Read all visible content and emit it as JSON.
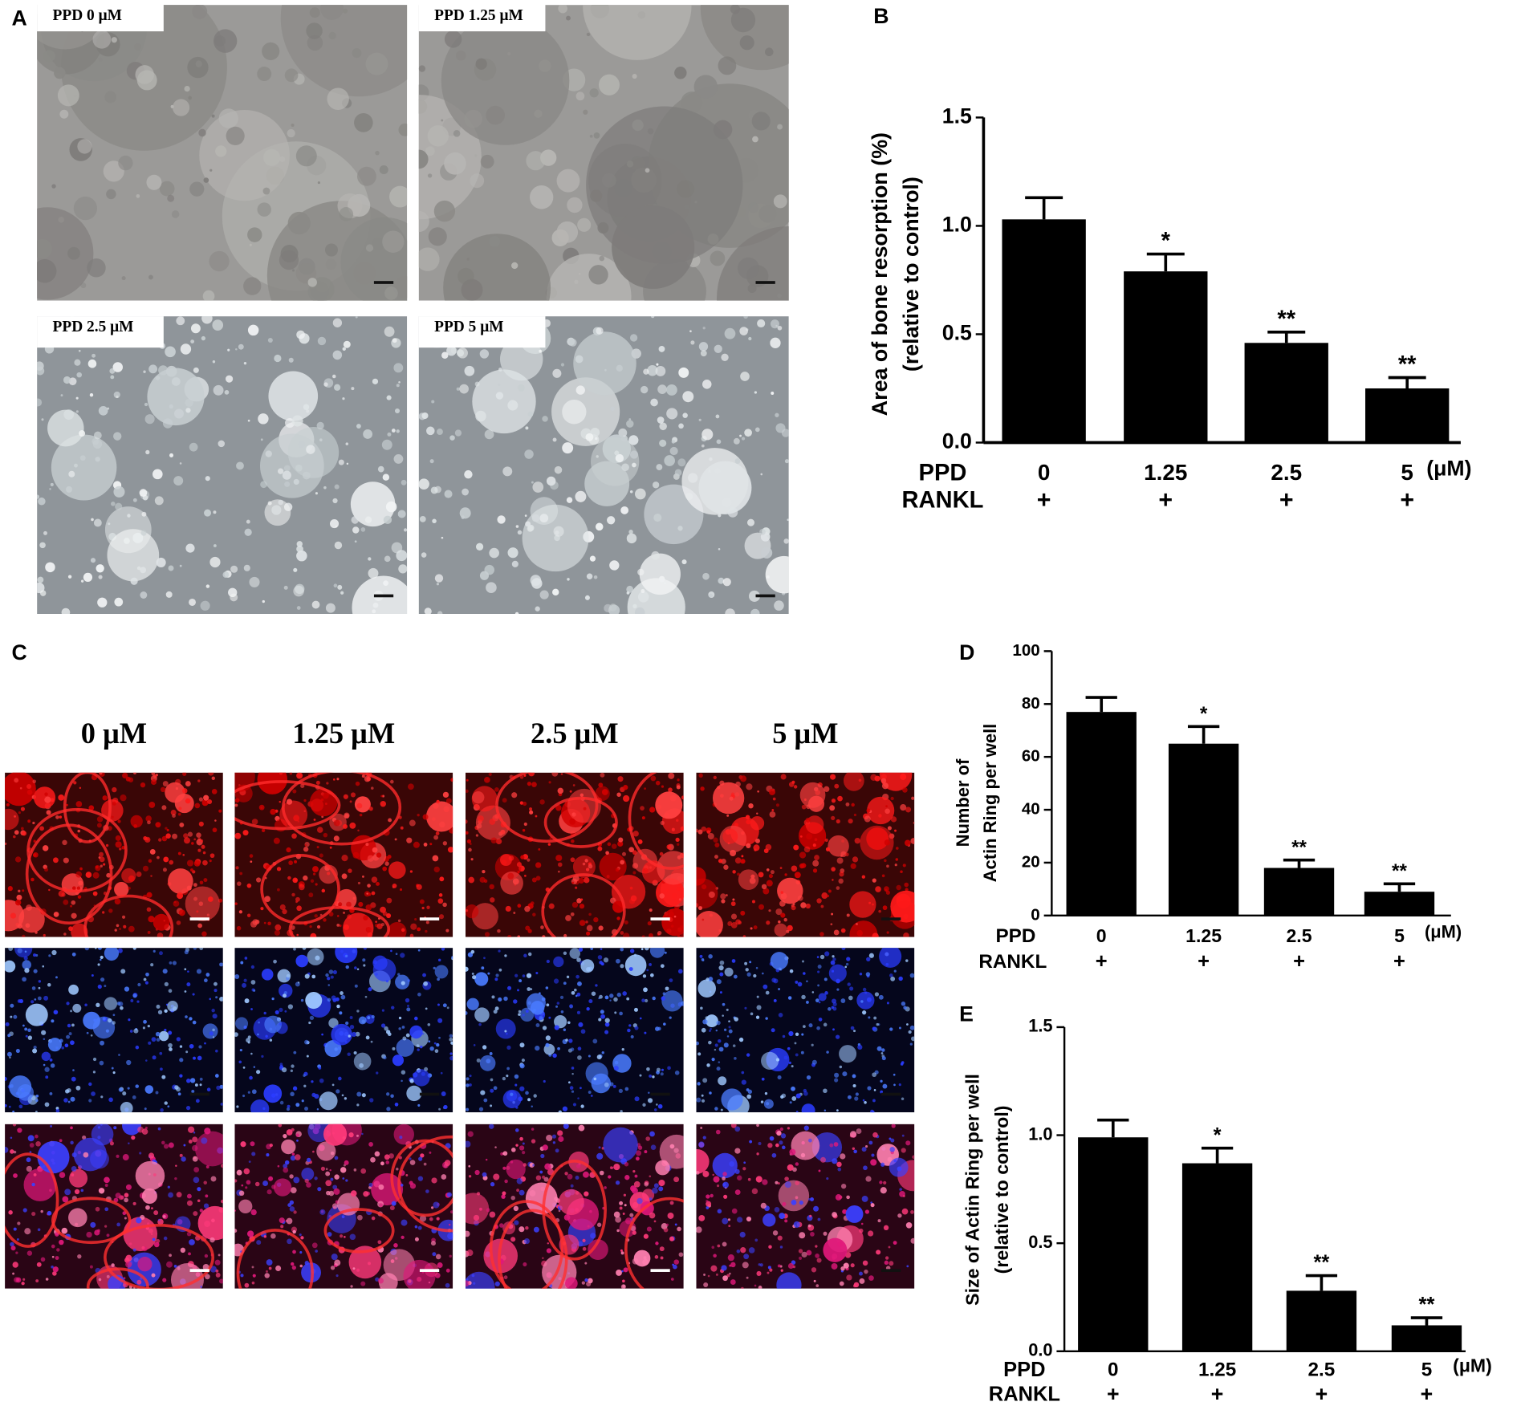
{
  "panel_labels": [
    "A",
    "B",
    "C",
    "D",
    "E"
  ],
  "micrographs": {
    "resorption_labels": [
      "PPD  0 μM",
      "PPD  1.25 μM",
      "PPD  2.5 μM",
      "PPD  5 μM"
    ],
    "actin_headers": [
      "0 μM",
      "1.25 μM",
      "2.5 μM",
      "5 μM"
    ]
  },
  "chart_data": [
    {
      "type": "bar",
      "ylabel": [
        "Area of bone resorption (%)",
        "(relative to control)"
      ],
      "categories": [
        "0",
        "1.25",
        "2.5",
        "5"
      ],
      "unit": "(μM)",
      "row_labels": [
        "PPD",
        "RANKL"
      ],
      "rankl": [
        "+",
        "+",
        "+",
        "+"
      ],
      "series": [
        {
          "color": "#000000",
          "values": [
            1.03,
            0.79,
            0.46,
            0.25
          ],
          "errors": [
            0.1,
            0.08,
            0.05,
            0.05
          ]
        }
      ],
      "significance": [
        null,
        "*",
        "**",
        "**"
      ],
      "ylim": [
        0,
        1.5
      ],
      "yticks": [
        {
          "value": 0,
          "label": "0.0"
        },
        0.5,
        {
          "value": 1,
          "label": "1.0"
        },
        1.5
      ]
    },
    {
      "type": "bar",
      "ylabel": [
        "Number of",
        "Actin Ring per well"
      ],
      "categories": [
        "0",
        "1.25",
        "2.5",
        "5"
      ],
      "unit": "(μM)",
      "row_labels": [
        "PPD",
        "RANKL"
      ],
      "rankl": [
        "+",
        "+",
        "+",
        "+"
      ],
      "series": [
        {
          "color": "#000000",
          "values": [
            77,
            65,
            18,
            9
          ],
          "errors": [
            5.5,
            6.5,
            3,
            3
          ]
        }
      ],
      "significance": [
        null,
        "*",
        "**",
        "**"
      ],
      "ylim": [
        0,
        100
      ],
      "yticks": [
        0,
        20,
        40,
        60,
        80,
        100
      ]
    },
    {
      "type": "bar",
      "ylabel": [
        "Size of Actin Ring per well",
        "(relative to control)"
      ],
      "categories": [
        "0",
        "1.25",
        "2.5",
        "5"
      ],
      "unit": "(μM)",
      "row_labels": [
        "PPD",
        "RANKL"
      ],
      "rankl": [
        "+",
        "+",
        "+",
        "+"
      ],
      "series": [
        {
          "color": "#000000",
          "values": [
            0.99,
            0.87,
            0.28,
            0.12
          ],
          "errors": [
            0.08,
            0.07,
            0.07,
            0.035
          ]
        }
      ],
      "significance": [
        null,
        "*",
        "**",
        "**"
      ],
      "ylim": [
        0,
        1.5
      ],
      "yticks": [
        {
          "value": 0,
          "label": "0.0"
        },
        0.5,
        {
          "value": 1,
          "label": "1.0"
        },
        1.5
      ]
    }
  ]
}
